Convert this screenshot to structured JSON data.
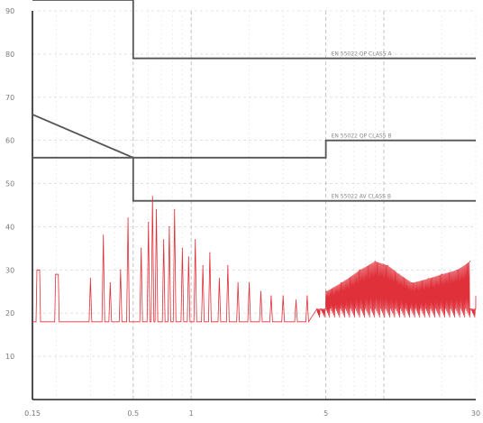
{
  "chart_data": {
    "type": "line",
    "x_scale": "log",
    "xlim": [
      0.15,
      30
    ],
    "ylim": [
      0,
      90
    ],
    "grid": true,
    "y_ticks": [
      {
        "value": 90,
        "label": "90"
      },
      {
        "value": 80,
        "label": "80"
      },
      {
        "value": 70,
        "label": "70"
      },
      {
        "value": 60,
        "label": "60"
      },
      {
        "value": 50,
        "label": "50"
      },
      {
        "value": 40,
        "label": "40"
      },
      {
        "value": 30,
        "label": "30"
      },
      {
        "value": 20,
        "label": "20"
      },
      {
        "value": 10,
        "label": "10"
      }
    ],
    "x_ticks": [
      {
        "value": 0.15,
        "label": "0.15"
      },
      {
        "value": 0.5,
        "label": "0.5"
      },
      {
        "value": 1,
        "label": "1"
      },
      {
        "value": 5,
        "label": "5"
      },
      {
        "value": 30,
        "label": "30"
      }
    ],
    "limit_lines": [
      {
        "label": "EN 55022 QP CLASS A",
        "points": [
          [
            0.15,
            93
          ],
          [
            0.5,
            93
          ],
          [
            0.5,
            79
          ],
          [
            30,
            79
          ]
        ]
      },
      {
        "label": "EN 55022 QP CLASS B",
        "points": [
          [
            0.15,
            66
          ],
          [
            0.5,
            56
          ],
          [
            5,
            56
          ],
          [
            5,
            60
          ],
          [
            30,
            60
          ]
        ]
      },
      {
        "label": "EN 55022 AV CLASS B",
        "points": [
          [
            0.15,
            56
          ],
          [
            0.5,
            56
          ],
          [
            0.5,
            46
          ],
          [
            30,
            46
          ]
        ]
      }
    ],
    "series": [
      {
        "color": "#e0303a",
        "peaks": [
          {
            "x": 0.16,
            "y": 30
          },
          {
            "x": 0.2,
            "y": 29
          },
          {
            "x": 0.3,
            "y": 28
          },
          {
            "x": 0.35,
            "y": 38
          },
          {
            "x": 0.38,
            "y": 27
          },
          {
            "x": 0.43,
            "y": 30
          },
          {
            "x": 0.47,
            "y": 42
          },
          {
            "x": 0.55,
            "y": 35
          },
          {
            "x": 0.6,
            "y": 41
          },
          {
            "x": 0.63,
            "y": 47
          },
          {
            "x": 0.66,
            "y": 44
          },
          {
            "x": 0.72,
            "y": 37
          },
          {
            "x": 0.77,
            "y": 40
          },
          {
            "x": 0.82,
            "y": 44
          },
          {
            "x": 0.9,
            "y": 35
          },
          {
            "x": 0.97,
            "y": 33
          },
          {
            "x": 1.05,
            "y": 37
          },
          {
            "x": 1.15,
            "y": 31
          },
          {
            "x": 1.25,
            "y": 34
          },
          {
            "x": 1.4,
            "y": 28
          },
          {
            "x": 1.55,
            "y": 31
          },
          {
            "x": 1.75,
            "y": 27
          },
          {
            "x": 2,
            "y": 27
          },
          {
            "x": 2.3,
            "y": 25
          },
          {
            "x": 2.6,
            "y": 24
          },
          {
            "x": 3,
            "y": 24
          },
          {
            "x": 3.5,
            "y": 23
          },
          {
            "x": 4,
            "y": 24
          },
          {
            "x": 5,
            "y": 25
          },
          {
            "x": 6,
            "y": 27
          },
          {
            "x": 7.5,
            "y": 30
          },
          {
            "x": 9,
            "y": 32
          },
          {
            "x": 10.5,
            "y": 31
          },
          {
            "x": 12,
            "y": 29
          },
          {
            "x": 14,
            "y": 27
          },
          {
            "x": 17,
            "y": 28
          },
          {
            "x": 20,
            "y": 29
          },
          {
            "x": 24,
            "y": 30
          },
          {
            "x": 28,
            "y": 32
          }
        ],
        "baseline": 18
      }
    ]
  }
}
